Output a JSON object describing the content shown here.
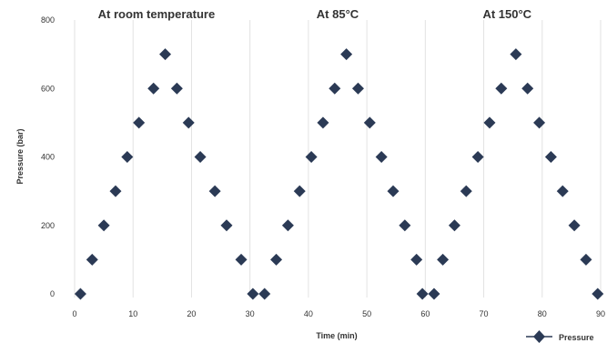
{
  "chart_data": {
    "type": "scatter",
    "xlabel": "Time (min)",
    "ylabel": "Pressure (bar)",
    "xlim": [
      0,
      90
    ],
    "ylim": [
      0,
      800
    ],
    "x_ticks": [
      0,
      10,
      20,
      30,
      40,
      50,
      60,
      70,
      80,
      90
    ],
    "y_ticks": [
      0,
      200,
      400,
      600,
      800
    ],
    "grid": "vertical",
    "legend_position": "bottom-right",
    "marker": "diamond",
    "color": "#2b3a55",
    "annotations": [
      {
        "text": "At room temperature",
        "x": 14
      },
      {
        "text": "At 85°C",
        "x": 45
      },
      {
        "text": "At 150°C",
        "x": 74
      }
    ],
    "series": [
      {
        "name": "Pressure",
        "points": [
          [
            1,
            0
          ],
          [
            3,
            100
          ],
          [
            5,
            200
          ],
          [
            7,
            300
          ],
          [
            9,
            400
          ],
          [
            11,
            500
          ],
          [
            13.5,
            600
          ],
          [
            15.5,
            700
          ],
          [
            17.5,
            600
          ],
          [
            19.5,
            500
          ],
          [
            21.5,
            400
          ],
          [
            24,
            300
          ],
          [
            26,
            200
          ],
          [
            28.5,
            100
          ],
          [
            30.5,
            0
          ],
          [
            32.5,
            0
          ],
          [
            34.5,
            100
          ],
          [
            36.5,
            200
          ],
          [
            38.5,
            300
          ],
          [
            40.5,
            400
          ],
          [
            42.5,
            500
          ],
          [
            44.5,
            600
          ],
          [
            46.5,
            700
          ],
          [
            48.5,
            600
          ],
          [
            50.5,
            500
          ],
          [
            52.5,
            400
          ],
          [
            54.5,
            300
          ],
          [
            56.5,
            200
          ],
          [
            58.5,
            100
          ],
          [
            59.5,
            0
          ],
          [
            61.5,
            0
          ],
          [
            63,
            100
          ],
          [
            65,
            200
          ],
          [
            67,
            300
          ],
          [
            69,
            400
          ],
          [
            71,
            500
          ],
          [
            73,
            600
          ],
          [
            75.5,
            700
          ],
          [
            77.5,
            600
          ],
          [
            79.5,
            500
          ],
          [
            81.5,
            400
          ],
          [
            83.5,
            300
          ],
          [
            85.5,
            200
          ],
          [
            87.5,
            100
          ],
          [
            89.5,
            0
          ]
        ]
      }
    ]
  }
}
